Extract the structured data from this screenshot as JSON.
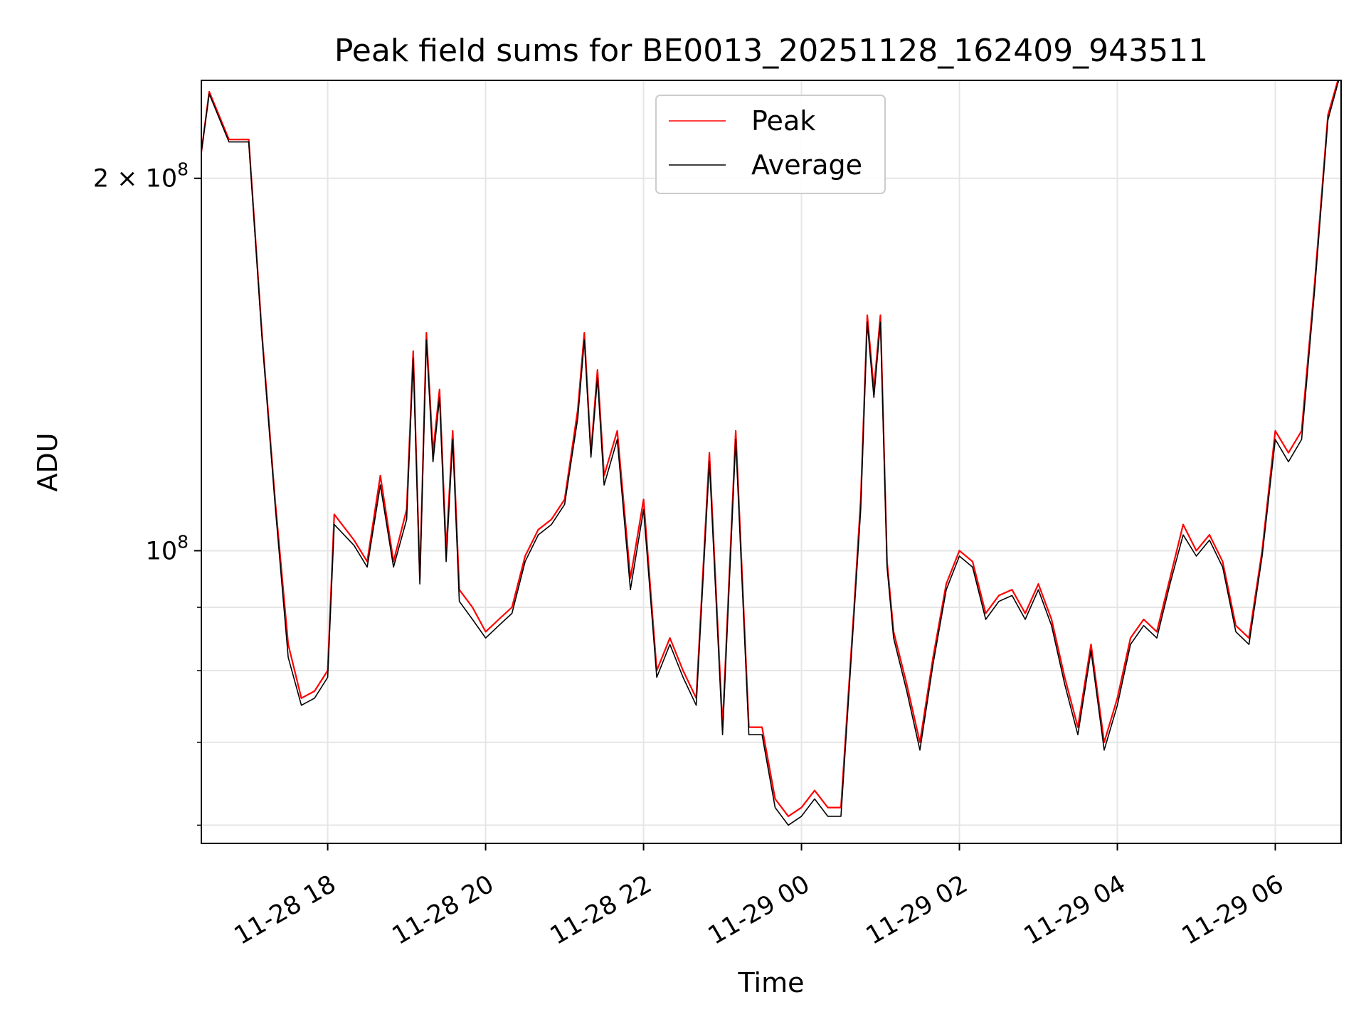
{
  "chart_data": {
    "type": "line",
    "title": "Peak field sums for BE0013_20251128_162409_943511",
    "xlabel": "Time",
    "ylabel": "ADU",
    "yscale": "log",
    "ylim": [
      58000000,
      240000000
    ],
    "xlim": [
      "2025-11-28 16:24",
      "2025-11-29 06:50"
    ],
    "grid": true,
    "legend_position": "top-center",
    "x_ticks": [
      {
        "t": "2025-11-28 18:00",
        "label": "11-28 18"
      },
      {
        "t": "2025-11-28 20:00",
        "label": "11-28 20"
      },
      {
        "t": "2025-11-28 22:00",
        "label": "11-28 22"
      },
      {
        "t": "2025-11-29 00:00",
        "label": "11-29 00"
      },
      {
        "t": "2025-11-29 02:00",
        "label": "11-29 02"
      },
      {
        "t": "2025-11-29 04:00",
        "label": "11-29 04"
      },
      {
        "t": "2025-11-29 06:00",
        "label": "11-29 06"
      }
    ],
    "y_ticks": [
      {
        "value": 100000000,
        "base": "10",
        "exp": "8",
        "coef": ""
      },
      {
        "value": 200000000,
        "base": "10",
        "exp": "8",
        "coef": "2 × "
      }
    ],
    "y_minor_ticks": [
      60000000,
      70000000,
      80000000,
      90000000
    ],
    "series": [
      {
        "name": "Peak",
        "color": "#ff0000",
        "x": [
          "2025-11-28 16:24",
          "2025-11-28 16:30",
          "2025-11-28 16:45",
          "2025-11-28 17:00",
          "2025-11-28 17:10",
          "2025-11-28 17:20",
          "2025-11-28 17:30",
          "2025-11-28 17:40",
          "2025-11-28 17:50",
          "2025-11-28 18:00",
          "2025-11-28 18:05",
          "2025-11-28 18:20",
          "2025-11-28 18:30",
          "2025-11-28 18:40",
          "2025-11-28 18:50",
          "2025-11-28 19:00",
          "2025-11-28 19:05",
          "2025-11-28 19:10",
          "2025-11-28 19:15",
          "2025-11-28 19:20",
          "2025-11-28 19:25",
          "2025-11-28 19:30",
          "2025-11-28 19:35",
          "2025-11-28 19:40",
          "2025-11-28 19:50",
          "2025-11-28 20:00",
          "2025-11-28 20:10",
          "2025-11-28 20:20",
          "2025-11-28 20:30",
          "2025-11-28 20:40",
          "2025-11-28 20:50",
          "2025-11-28 21:00",
          "2025-11-28 21:10",
          "2025-11-28 21:15",
          "2025-11-28 21:20",
          "2025-11-28 21:25",
          "2025-11-28 21:30",
          "2025-11-28 21:40",
          "2025-11-28 21:50",
          "2025-11-28 22:00",
          "2025-11-28 22:10",
          "2025-11-28 22:20",
          "2025-11-28 22:30",
          "2025-11-28 22:40",
          "2025-11-28 22:50",
          "2025-11-28 23:00",
          "2025-11-28 23:10",
          "2025-11-28 23:20",
          "2025-11-28 23:30",
          "2025-11-28 23:40",
          "2025-11-28 23:50",
          "2025-11-29 00:00",
          "2025-11-29 00:10",
          "2025-11-29 00:20",
          "2025-11-29 00:30",
          "2025-11-29 00:40",
          "2025-11-29 00:45",
          "2025-11-29 00:50",
          "2025-11-29 00:55",
          "2025-11-29 01:00",
          "2025-11-29 01:05",
          "2025-11-29 01:10",
          "2025-11-29 01:20",
          "2025-11-29 01:30",
          "2025-11-29 01:40",
          "2025-11-29 01:50",
          "2025-11-29 02:00",
          "2025-11-29 02:10",
          "2025-11-29 02:20",
          "2025-11-29 02:30",
          "2025-11-29 02:40",
          "2025-11-29 02:50",
          "2025-11-29 03:00",
          "2025-11-29 03:10",
          "2025-11-29 03:20",
          "2025-11-29 03:30",
          "2025-11-29 03:40",
          "2025-11-29 03:50",
          "2025-11-29 04:00",
          "2025-11-29 04:10",
          "2025-11-29 04:20",
          "2025-11-29 04:30",
          "2025-11-29 04:40",
          "2025-11-29 04:50",
          "2025-11-29 05:00",
          "2025-11-29 05:10",
          "2025-11-29 05:20",
          "2025-11-29 05:30",
          "2025-11-29 05:40",
          "2025-11-29 05:50",
          "2025-11-29 06:00",
          "2025-11-29 06:10",
          "2025-11-29 06:20",
          "2025-11-29 06:30",
          "2025-11-29 06:40",
          "2025-11-29 06:50"
        ],
        "values": [
          210000000,
          235000000,
          215000000,
          215000000,
          150000000,
          110000000,
          84000000,
          76000000,
          77000000,
          80000000,
          107000000,
          102000000,
          98000000,
          115000000,
          98000000,
          108000000,
          145000000,
          95000000,
          150000000,
          120000000,
          135000000,
          100000000,
          125000000,
          93000000,
          90000000,
          86000000,
          88000000,
          90000000,
          99000000,
          104000000,
          106000000,
          110000000,
          130000000,
          150000000,
          120000000,
          140000000,
          115000000,
          125000000,
          95000000,
          110000000,
          80000000,
          85000000,
          80000000,
          76000000,
          120000000,
          72000000,
          125000000,
          72000000,
          72000000,
          63000000,
          61000000,
          62000000,
          64000000,
          62000000,
          62000000,
          90000000,
          110000000,
          155000000,
          135000000,
          155000000,
          98000000,
          86000000,
          78000000,
          70000000,
          82000000,
          94000000,
          100000000,
          98000000,
          89000000,
          92000000,
          93000000,
          89000000,
          94000000,
          88000000,
          79000000,
          72000000,
          84000000,
          70000000,
          76000000,
          85000000,
          88000000,
          86000000,
          95000000,
          105000000,
          100000000,
          103000000,
          98000000,
          87000000,
          85000000,
          100000000,
          125000000,
          120000000,
          125000000,
          165000000,
          225000000,
          245000000
        ]
      },
      {
        "name": "Average",
        "color": "#000000",
        "x": [
          "2025-11-28 16:24",
          "2025-11-28 16:30",
          "2025-11-28 16:45",
          "2025-11-28 17:00",
          "2025-11-28 17:10",
          "2025-11-28 17:20",
          "2025-11-28 17:30",
          "2025-11-28 17:40",
          "2025-11-28 17:50",
          "2025-11-28 18:00",
          "2025-11-28 18:05",
          "2025-11-28 18:20",
          "2025-11-28 18:30",
          "2025-11-28 18:40",
          "2025-11-28 18:50",
          "2025-11-28 19:00",
          "2025-11-28 19:05",
          "2025-11-28 19:10",
          "2025-11-28 19:15",
          "2025-11-28 19:20",
          "2025-11-28 19:25",
          "2025-11-28 19:30",
          "2025-11-28 19:35",
          "2025-11-28 19:40",
          "2025-11-28 19:50",
          "2025-11-28 20:00",
          "2025-11-28 20:10",
          "2025-11-28 20:20",
          "2025-11-28 20:30",
          "2025-11-28 20:40",
          "2025-11-28 20:50",
          "2025-11-28 21:00",
          "2025-11-28 21:10",
          "2025-11-28 21:15",
          "2025-11-28 21:20",
          "2025-11-28 21:25",
          "2025-11-28 21:30",
          "2025-11-28 21:40",
          "2025-11-28 21:50",
          "2025-11-28 22:00",
          "2025-11-28 22:10",
          "2025-11-28 22:20",
          "2025-11-28 22:30",
          "2025-11-28 22:40",
          "2025-11-28 22:50",
          "2025-11-28 23:00",
          "2025-11-28 23:10",
          "2025-11-28 23:20",
          "2025-11-28 23:30",
          "2025-11-28 23:40",
          "2025-11-28 23:50",
          "2025-11-29 00:00",
          "2025-11-29 00:10",
          "2025-11-29 00:20",
          "2025-11-29 00:30",
          "2025-11-29 00:40",
          "2025-11-29 00:45",
          "2025-11-29 00:50",
          "2025-11-29 00:55",
          "2025-11-29 01:00",
          "2025-11-29 01:05",
          "2025-11-29 01:10",
          "2025-11-29 01:20",
          "2025-11-29 01:30",
          "2025-11-29 01:40",
          "2025-11-29 01:50",
          "2025-11-29 02:00",
          "2025-11-29 02:10",
          "2025-11-29 02:20",
          "2025-11-29 02:30",
          "2025-11-29 02:40",
          "2025-11-29 02:50",
          "2025-11-29 03:00",
          "2025-11-29 03:10",
          "2025-11-29 03:20",
          "2025-11-29 03:30",
          "2025-11-29 03:40",
          "2025-11-29 03:50",
          "2025-11-29 04:00",
          "2025-11-29 04:10",
          "2025-11-29 04:20",
          "2025-11-29 04:30",
          "2025-11-29 04:40",
          "2025-11-29 04:50",
          "2025-11-29 05:00",
          "2025-11-29 05:10",
          "2025-11-29 05:20",
          "2025-11-29 05:30",
          "2025-11-29 05:40",
          "2025-11-29 05:50",
          "2025-11-29 06:00",
          "2025-11-29 06:10",
          "2025-11-29 06:20",
          "2025-11-29 06:30",
          "2025-11-29 06:40",
          "2025-11-29 06:50"
        ],
        "values": [
          210000000,
          234000000,
          214000000,
          214000000,
          149000000,
          109000000,
          82000000,
          75000000,
          76000000,
          79000000,
          105000000,
          101000000,
          97000000,
          113000000,
          97000000,
          106000000,
          143000000,
          94000000,
          148000000,
          118000000,
          133000000,
          98000000,
          123000000,
          91000000,
          88000000,
          85000000,
          87000000,
          89000000,
          98000000,
          103000000,
          105000000,
          109000000,
          128000000,
          148000000,
          119000000,
          138000000,
          113000000,
          123000000,
          93000000,
          108000000,
          79000000,
          84000000,
          79000000,
          75000000,
          118000000,
          71000000,
          123000000,
          71000000,
          71000000,
          62000000,
          60000000,
          61000000,
          63000000,
          61000000,
          61000000,
          89000000,
          108000000,
          153000000,
          133000000,
          153000000,
          97000000,
          85000000,
          77000000,
          69000000,
          81000000,
          93000000,
          99000000,
          97000000,
          88000000,
          91000000,
          92000000,
          88000000,
          93000000,
          87000000,
          78000000,
          71000000,
          83000000,
          69000000,
          75000000,
          84000000,
          87000000,
          85000000,
          94000000,
          103000000,
          99000000,
          102000000,
          97000000,
          86000000,
          84000000,
          99000000,
          123000000,
          118000000,
          123000000,
          163000000,
          223000000,
          244000000
        ]
      }
    ]
  }
}
